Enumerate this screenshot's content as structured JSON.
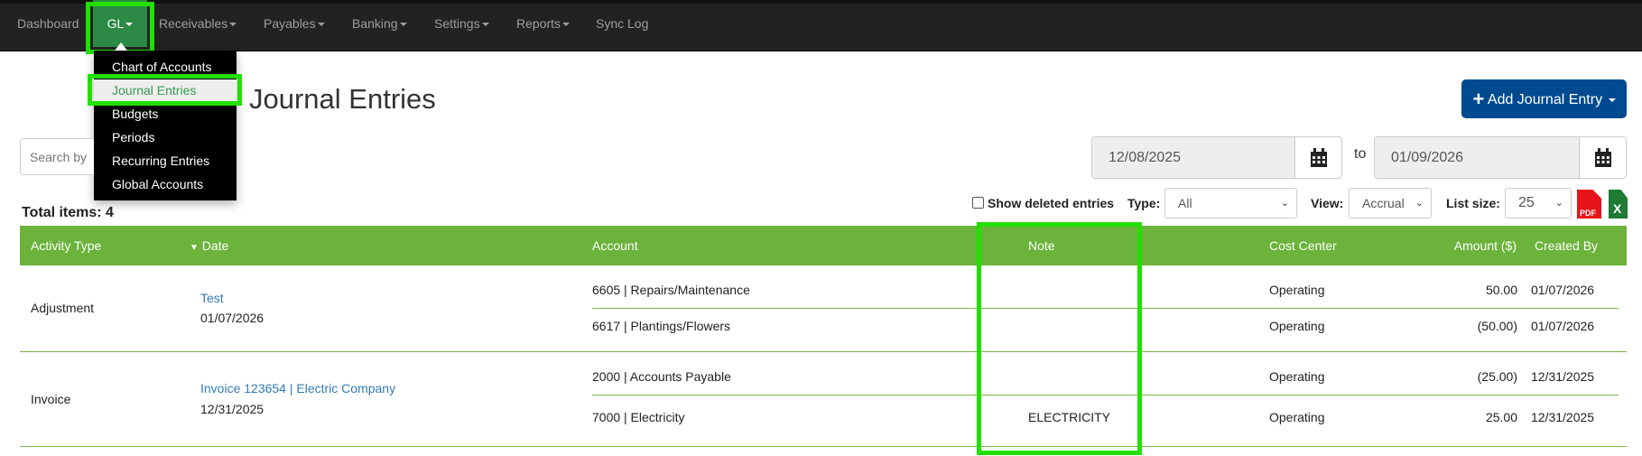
{
  "nav": {
    "items": [
      {
        "label": "Dashboard",
        "caret": false
      },
      {
        "label": "GL",
        "caret": true
      },
      {
        "label": "Receivables",
        "caret": true
      },
      {
        "label": "Payables",
        "caret": true
      },
      {
        "label": "Banking",
        "caret": true
      },
      {
        "label": "Settings",
        "caret": true
      },
      {
        "label": "Reports",
        "caret": true
      },
      {
        "label": "Sync Log",
        "caret": false
      }
    ],
    "active": "GL"
  },
  "gl_menu": {
    "items": [
      "Chart of Accounts",
      "Journal Entries",
      "Budgets",
      "Periods",
      "Recurring Entries",
      "Global Accounts"
    ],
    "active": "Journal Entries"
  },
  "page": {
    "title": "Journal Entries",
    "add_button": "Add Journal Entry",
    "search_placeholder": "Search by",
    "total_items": "Total items: 4"
  },
  "filters": {
    "date_from": "12/08/2025",
    "date_to": "01/09/2026",
    "to_label": "to",
    "show_deleted": "Show deleted entries",
    "show_deleted_checked": false,
    "type_label": "Type:",
    "type_value": "All",
    "view_label": "View:",
    "view_value": "Accrual",
    "list_size_label": "List size:",
    "list_size_value": "25",
    "pdf_label": "PDF",
    "xls_label": "X"
  },
  "table": {
    "columns": [
      "Activity Type",
      "Date",
      "Account",
      "Note",
      "Cost Center",
      "Amount ($)",
      "Created By"
    ],
    "sort_column": "Date",
    "groups": [
      {
        "activity_type": "Adjustment",
        "link": "Test",
        "date": "01/07/2026",
        "lines": [
          {
            "account": "6605 | Repairs/Maintenance",
            "note": "",
            "cost_center": "Operating",
            "amount": "50.00",
            "created_by": "01/07/2026"
          },
          {
            "account": "6617 | Plantings/Flowers",
            "note": "",
            "cost_center": "Operating",
            "amount": "(50.00)",
            "created_by": "01/07/2026"
          }
        ]
      },
      {
        "activity_type": "Invoice",
        "link": "Invoice 123654 | Electric Company",
        "date": "12/31/2025",
        "lines": [
          {
            "account": "2000 | Accounts Payable",
            "note": "",
            "cost_center": "Operating",
            "amount": "(25.00)",
            "created_by": "12/31/2025"
          },
          {
            "account": "7000 | Electricity",
            "note": "ELECTRICITY",
            "cost_center": "Operating",
            "amount": "25.00",
            "created_by": "12/31/2025"
          }
        ]
      }
    ]
  },
  "colors": {
    "nav_bg": "#222222",
    "gl_active": "#2d8a46",
    "table_header": "#6bb33b",
    "primary_button": "#004a8f",
    "highlight_outline": "#22e000",
    "link": "#337ab7"
  }
}
